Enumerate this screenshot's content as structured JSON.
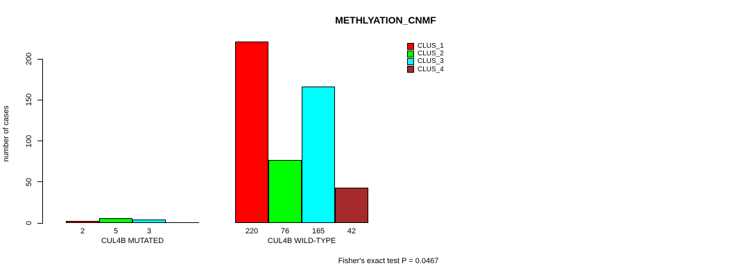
{
  "chart_data": {
    "type": "bar",
    "title": "METHLYATION_CNMF",
    "ylabel": "number of cases",
    "ylim": [
      0,
      200
    ],
    "yticks": [
      0,
      50,
      100,
      150,
      200
    ],
    "grid": false,
    "legend_position": "top-right",
    "categories": [
      "CUL4B MUTATED",
      "CUL4B WILD-TYPE"
    ],
    "series": [
      {
        "name": "CLUS_1",
        "color": "#FF0000",
        "values": [
          2,
          220
        ]
      },
      {
        "name": "CLUS_2",
        "color": "#00FF00",
        "values": [
          5,
          76
        ]
      },
      {
        "name": "CLUS_3",
        "color": "#00FFFF",
        "values": [
          3,
          165
        ]
      },
      {
        "name": "CLUS_4",
        "color": "#A52A2A",
        "values": [
          0,
          42
        ]
      }
    ],
    "annotation": "Fisher's exact test P = 0.0467"
  },
  "layout_colors": {
    "background": "#ffffff",
    "axis": "#000000",
    "text": "#000000"
  }
}
